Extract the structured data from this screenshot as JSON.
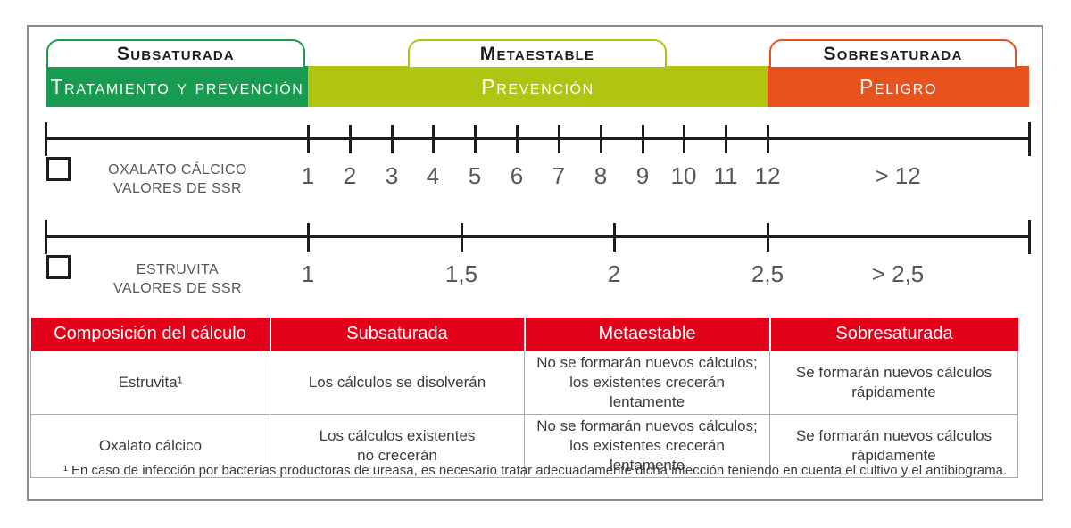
{
  "zones": [
    {
      "id": "subsaturada",
      "bracket_label": "Subsaturada",
      "bar_label": "Tratamiento y prevención",
      "color": "#169B50"
    },
    {
      "id": "metaestable",
      "bracket_label": "Metaestable",
      "bar_label": "Prevención",
      "color": "#AFC511"
    },
    {
      "id": "sobresaturada",
      "bracket_label": "Sobresaturada",
      "bar_label": "Peligro",
      "color": "#E7521D"
    }
  ],
  "scales": [
    {
      "id": "oxalato",
      "name_line1": "Oxalato cálcico",
      "name_line2": "Valores de SSR",
      "tick_labels": [
        "1",
        "2",
        "3",
        "4",
        "5",
        "6",
        "7",
        "8",
        "9",
        "10",
        "11",
        "12"
      ],
      "overflow_label": "> 12"
    },
    {
      "id": "estruvita",
      "name_line1": "Estruvita",
      "name_line2": "Valores de SSR",
      "tick_labels": [
        "1",
        "1,5",
        "2",
        "2,5"
      ],
      "overflow_label": "> 2,5"
    }
  ],
  "table": {
    "header_bg": "#E2001A",
    "headers": [
      "Composición del cálculo",
      "Subsaturada",
      "Metaestable",
      "Sobresaturada"
    ],
    "rows": [
      [
        "Estruvita¹",
        "Los cálculos se disolverán",
        "No se formarán nuevos cálculos;\nlos existentes crecerán lentamente",
        "Se formarán nuevos cálculos\nrápidamente"
      ],
      [
        "Oxalato cálcico",
        "Los cálculos existentes\nno crecerán",
        "No se formarán nuevos cálculos;\nlos existentes crecerán lentamente",
        "Se formarán nuevos cálculos\nrápidamente"
      ]
    ]
  },
  "footnote": "¹ En caso de infección por bacterias productoras de ureasa, es necesario tratar adecuadamente dicha infección teniendo en cuenta el cultivo y el antibiograma."
}
